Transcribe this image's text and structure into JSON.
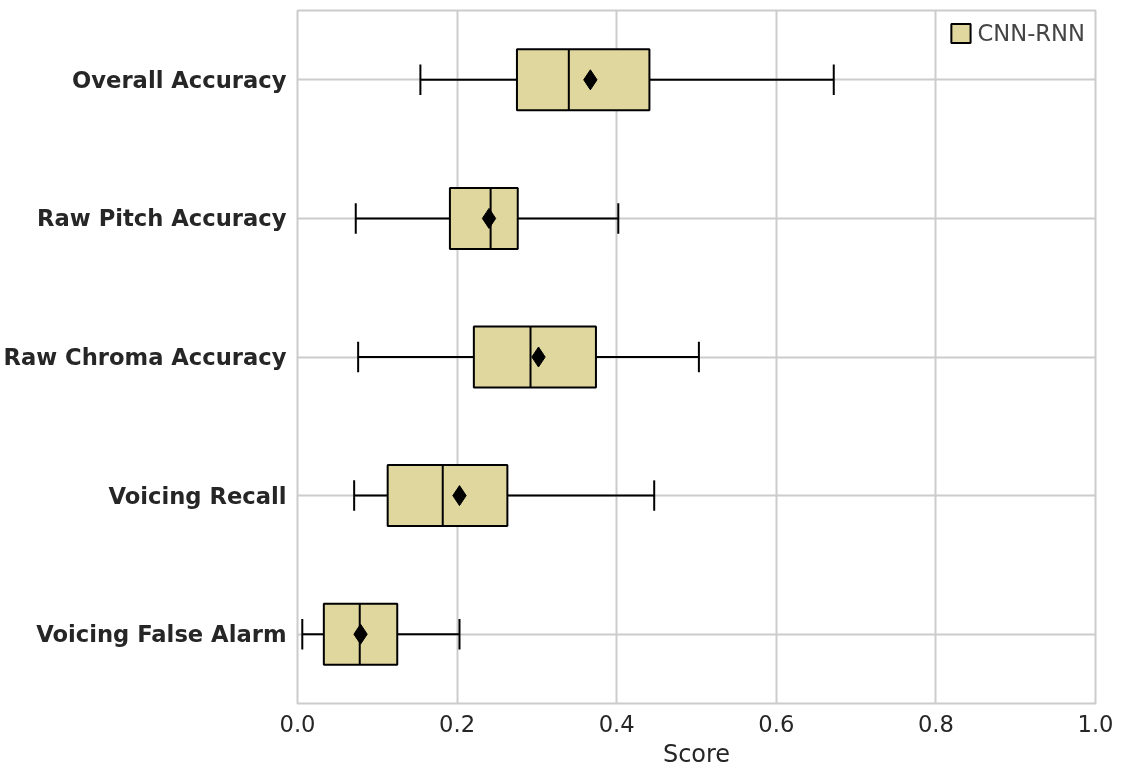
{
  "chart_data": {
    "type": "box",
    "orientation": "horizontal",
    "xlabel": "Score",
    "categories": [
      "Overall Accuracy",
      "Raw Pitch Accuracy",
      "Raw Chroma Accuracy",
      "Voicing Recall",
      "Voicing False Alarm"
    ],
    "series": [
      {
        "name": "CNN-RNN",
        "color": "#e0d79f",
        "boxes": [
          {
            "low": 0.154,
            "q1": 0.275,
            "median": 0.34,
            "q3": 0.441,
            "high": 0.672,
            "mean": 0.367
          },
          {
            "low": 0.073,
            "q1": 0.191,
            "median": 0.242,
            "q3": 0.276,
            "high": 0.402,
            "mean": 0.24
          },
          {
            "low": 0.076,
            "q1": 0.221,
            "median": 0.292,
            "q3": 0.374,
            "high": 0.503,
            "mean": 0.302
          },
          {
            "low": 0.071,
            "q1": 0.113,
            "median": 0.182,
            "q3": 0.263,
            "high": 0.447,
            "mean": 0.203
          },
          {
            "low": 0.006,
            "q1": 0.033,
            "median": 0.078,
            "q3": 0.125,
            "high": 0.203,
            "mean": 0.079
          }
        ]
      }
    ],
    "xlim": [
      0.0,
      1.0
    ],
    "xticks": [
      {
        "value": 0,
        "label": "0.0"
      },
      0.2,
      0.4,
      0.6,
      0.8,
      {
        "value": 1,
        "label": "1.0"
      }
    ],
    "grid": true,
    "legend": "top right",
    "marker": "diamond"
  }
}
